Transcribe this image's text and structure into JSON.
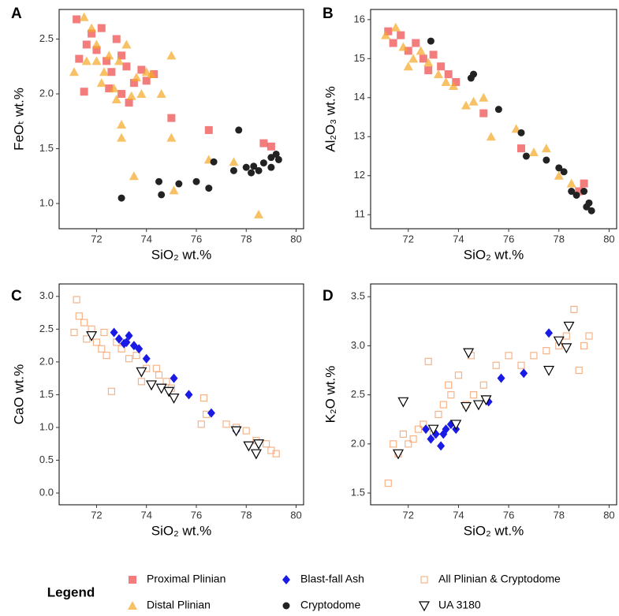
{
  "legend_title": "Legend",
  "chart_data": [
    {
      "type": "scatter",
      "panel": "A",
      "xlabel": "SiO₂ wt.%",
      "ylabel": "FeOₜ wt.%",
      "xlim": [
        70.5,
        80.3
      ],
      "xticks": [
        72,
        74,
        76,
        78,
        80
      ],
      "ylim": [
        0.77,
        2.77
      ],
      "yticks": [
        {
          "value": 1,
          "label": "1.0"
        },
        1.5,
        {
          "value": 2,
          "label": "2.0"
        },
        2.5
      ],
      "series": [
        {
          "name": "Proximal Plinian",
          "color": "#ee4444",
          "marker": "square",
          "x": [
            71.2,
            71.3,
            71.5,
            71.6,
            71.8,
            72.0,
            72.2,
            72.4,
            72.6,
            72.8,
            73.0,
            73.2,
            73.3,
            73.5,
            73.8,
            74.0,
            74.3,
            75.0,
            76.5,
            78.7,
            79.0,
            73.0,
            72.5
          ],
          "values": [
            2.68,
            2.32,
            2.02,
            2.45,
            2.55,
            2.4,
            2.6,
            2.3,
            2.2,
            2.5,
            2.35,
            2.25,
            1.92,
            2.1,
            2.22,
            2.12,
            2.18,
            1.78,
            1.67,
            1.55,
            1.52,
            2.0,
            2.05
          ]
        },
        {
          "name": "Distal Plinian",
          "color": "#f5a623",
          "marker": "triangle",
          "x": [
            71.1,
            71.5,
            71.8,
            72.0,
            72.0,
            72.3,
            72.5,
            72.7,
            72.9,
            73.0,
            73.0,
            73.2,
            73.6,
            73.8,
            74.0,
            74.2,
            74.6,
            75.0,
            75.0,
            73.5,
            75.1,
            76.5,
            77.5,
            78.5,
            71.6,
            72.2,
            72.8,
            73.4
          ],
          "values": [
            2.2,
            2.7,
            2.6,
            2.3,
            2.45,
            2.2,
            2.35,
            2.05,
            2.3,
            1.72,
            1.6,
            2.45,
            2.15,
            2.0,
            2.2,
            2.18,
            2.0,
            2.35,
            1.6,
            1.25,
            1.12,
            1.4,
            1.38,
            0.9,
            2.3,
            2.1,
            1.95,
            1.98
          ]
        },
        {
          "name": "Cryptodome",
          "color": "#222222",
          "marker": "circle",
          "x": [
            73.0,
            74.5,
            74.6,
            75.3,
            76.0,
            76.5,
            76.7,
            77.5,
            77.7,
            78.0,
            78.3,
            78.5,
            78.7,
            79.0,
            79.2,
            79.3,
            79.0,
            78.2
          ],
          "values": [
            1.05,
            1.2,
            1.08,
            1.18,
            1.2,
            1.14,
            1.38,
            1.3,
            1.67,
            1.33,
            1.34,
            1.3,
            1.37,
            1.33,
            1.45,
            1.4,
            1.42,
            1.28
          ]
        }
      ]
    },
    {
      "type": "scatter",
      "panel": "B",
      "xlabel": "SiO₂ wt.%",
      "ylabel": "Al₂O₃ wt.%",
      "xlim": [
        70.5,
        80.3
      ],
      "xticks": [
        72,
        74,
        76,
        78,
        80
      ],
      "ylim": [
        10.64,
        16.26
      ],
      "yticks": [
        11,
        12,
        13,
        14,
        15,
        16
      ],
      "series": [
        {
          "name": "Proximal Plinian",
          "color": "#ee4444",
          "marker": "square",
          "x": [
            71.2,
            71.4,
            71.7,
            72.0,
            72.3,
            72.6,
            73.0,
            73.3,
            73.6,
            73.9,
            72.8,
            75.0,
            76.5,
            79.0,
            78.8
          ],
          "values": [
            15.7,
            15.4,
            15.6,
            15.2,
            15.4,
            15.0,
            15.1,
            14.8,
            14.6,
            14.4,
            14.7,
            13.6,
            12.7,
            11.8,
            11.6
          ]
        },
        {
          "name": "Distal Plinian",
          "color": "#f5a623",
          "marker": "triangle",
          "x": [
            71.1,
            71.5,
            71.8,
            72.2,
            72.5,
            72.8,
            73.2,
            73.5,
            73.8,
            74.3,
            74.6,
            75.0,
            75.3,
            76.3,
            77.0,
            77.5,
            78.0,
            78.5,
            72.0
          ],
          "values": [
            15.6,
            15.8,
            15.3,
            15.0,
            15.2,
            14.9,
            14.6,
            14.4,
            14.3,
            13.8,
            13.9,
            14.0,
            13.0,
            13.2,
            12.6,
            12.7,
            12.0,
            11.8,
            14.8
          ]
        },
        {
          "name": "Cryptodome",
          "color": "#222222",
          "marker": "circle",
          "x": [
            72.9,
            74.5,
            74.6,
            75.6,
            76.5,
            76.7,
            77.5,
            78.0,
            78.2,
            78.5,
            78.7,
            79.0,
            79.2,
            79.3,
            79.1
          ],
          "values": [
            15.45,
            14.5,
            14.6,
            13.7,
            13.1,
            12.5,
            12.4,
            12.2,
            12.1,
            11.6,
            11.5,
            11.6,
            11.3,
            11.1,
            11.2
          ]
        }
      ]
    },
    {
      "type": "scatter",
      "panel": "C",
      "xlabel": "SiO₂ wt.%",
      "ylabel": "CaO wt.%",
      "xlim": [
        70.5,
        80.3
      ],
      "xticks": [
        72,
        74,
        76,
        78,
        80
      ],
      "ylim": [
        -0.18,
        3.19
      ],
      "yticks": [
        {
          "value": 0,
          "label": "0.0"
        },
        0.5,
        {
          "value": 1,
          "label": "1.0"
        },
        1.5,
        {
          "value": 2,
          "label": "2.0"
        },
        2.5,
        {
          "value": 3,
          "label": "3.0"
        }
      ],
      "series": [
        {
          "name": "All Plinian & Cryptodome",
          "color": "#f5a06a",
          "marker": "open-square",
          "x": [
            71.1,
            71.2,
            71.3,
            71.5,
            71.8,
            72.0,
            72.2,
            72.4,
            72.6,
            72.8,
            73.0,
            73.3,
            73.6,
            74.0,
            74.4,
            74.8,
            75.0,
            76.3,
            76.4,
            76.2,
            77.2,
            77.6,
            78.0,
            78.4,
            78.8,
            79.0,
            79.2,
            71.6,
            72.3,
            73.8,
            74.5
          ],
          "values": [
            2.45,
            2.95,
            2.7,
            2.6,
            2.5,
            2.3,
            2.2,
            2.1,
            1.55,
            2.3,
            2.2,
            2.05,
            2.1,
            1.9,
            1.9,
            1.7,
            1.6,
            1.45,
            1.2,
            1.05,
            1.05,
            1.0,
            0.95,
            0.8,
            0.75,
            0.65,
            0.6,
            2.35,
            2.45,
            1.7,
            1.8
          ]
        },
        {
          "name": "Blast-fall Ash",
          "color": "#1a1ae6",
          "marker": "diamond",
          "x": [
            72.7,
            72.9,
            73.1,
            73.3,
            73.5,
            73.7,
            74.0,
            75.1,
            75.7,
            76.6,
            77.6,
            73.2
          ],
          "values": [
            2.45,
            2.35,
            2.28,
            2.4,
            2.25,
            2.2,
            2.05,
            1.75,
            1.5,
            1.22,
            0.95,
            2.3
          ]
        },
        {
          "name": "UA 3180",
          "color": "#000000",
          "marker": "open-triangle",
          "x": [
            71.8,
            73.8,
            74.2,
            74.6,
            74.9,
            75.1,
            77.6,
            78.1,
            78.4,
            78.5
          ],
          "values": [
            2.4,
            1.85,
            1.65,
            1.6,
            1.55,
            1.45,
            0.95,
            0.72,
            0.6,
            0.75
          ]
        }
      ]
    },
    {
      "type": "scatter",
      "panel": "D",
      "xlabel": "SiO₂ wt.%",
      "ylabel": "K₂O wt.%",
      "xlim": [
        70.5,
        80.3
      ],
      "xticks": [
        72,
        74,
        76,
        78,
        80
      ],
      "ylim": [
        1.38,
        3.63
      ],
      "yticks": [
        1.5,
        {
          "value": 2,
          "label": "2.0"
        },
        2.5,
        {
          "value": 3,
          "label": "3.0"
        },
        3.5
      ],
      "series": [
        {
          "name": "All Plinian & Cryptodome",
          "color": "#f5a06a",
          "marker": "open-square",
          "x": [
            71.2,
            71.4,
            71.6,
            71.8,
            72.0,
            72.2,
            72.4,
            72.6,
            72.8,
            73.0,
            73.2,
            73.4,
            73.7,
            74.0,
            74.3,
            74.6,
            75.0,
            75.5,
            76.0,
            76.5,
            77.0,
            77.5,
            78.0,
            78.3,
            78.6,
            78.8,
            79.0,
            79.2,
            74.5,
            73.6
          ],
          "values": [
            1.6,
            2.0,
            1.9,
            2.1,
            2.0,
            2.05,
            2.15,
            2.2,
            2.84,
            2.1,
            2.3,
            2.4,
            2.5,
            2.7,
            2.4,
            2.5,
            2.6,
            2.8,
            2.9,
            2.8,
            2.9,
            2.95,
            3.0,
            3.1,
            3.37,
            2.75,
            3.0,
            3.1,
            2.9,
            2.6
          ]
        },
        {
          "name": "Blast-fall Ash",
          "color": "#1a1ae6",
          "marker": "diamond",
          "x": [
            72.7,
            72.9,
            73.1,
            73.3,
            73.5,
            73.7,
            73.9,
            75.2,
            75.7,
            76.6,
            77.6,
            73.4
          ],
          "values": [
            2.15,
            2.05,
            2.1,
            1.98,
            2.15,
            2.2,
            2.15,
            2.43,
            2.67,
            2.72,
            3.13,
            2.1
          ]
        },
        {
          "name": "UA 3180",
          "color": "#000000",
          "marker": "open-triangle",
          "x": [
            71.6,
            71.8,
            73.9,
            74.4,
            74.3,
            74.8,
            75.1,
            77.6,
            78.0,
            78.4,
            78.3,
            73.0
          ],
          "values": [
            1.9,
            2.43,
            2.2,
            2.93,
            2.38,
            2.4,
            2.45,
            2.75,
            3.05,
            3.2,
            2.98,
            2.15
          ]
        }
      ]
    }
  ]
}
